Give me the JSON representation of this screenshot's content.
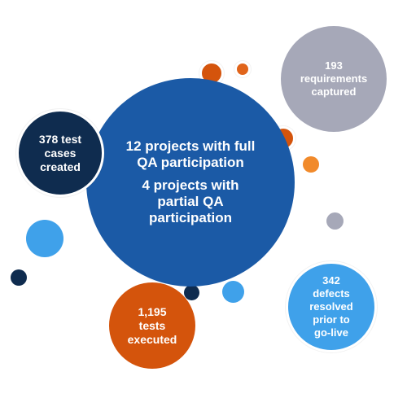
{
  "main": {
    "line1": "12 projects with full",
    "line2": "QA participation",
    "line3": "4 projects with",
    "line4": "partial QA",
    "line5": "participation"
  },
  "test_cases": {
    "l1": "378 test",
    "l2": "cases",
    "l3": "created"
  },
  "requirements": {
    "l1": "193",
    "l2": "requirements",
    "l3": "captured"
  },
  "tests_executed": {
    "l1": "1,195",
    "l2": "tests",
    "l3": "executed"
  },
  "defects": {
    "l1": "342",
    "l2": "defects",
    "l3": "resolved",
    "l4": "prior to",
    "l5": "go-live"
  },
  "colors": {
    "navy": "#0f2c4f",
    "blue": "#1b5aa6",
    "light_blue": "#3fa1ea",
    "orange": "#d4540c",
    "light_orange": "#f18a2b",
    "gray": "#a6a8b8"
  }
}
